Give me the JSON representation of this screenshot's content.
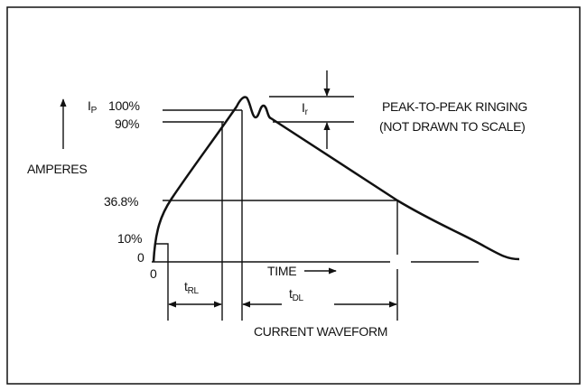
{
  "labels": {
    "peak": {
      "main": "I",
      "sub": "P"
    },
    "pct_100": "100%",
    "pct_90": "90%",
    "axis": "AMPERES",
    "pct_36_8": "36.8%",
    "pct_10": "10%",
    "zero_y": "0",
    "zero_x": "0",
    "rise": {
      "main": "t",
      "sub": "RL"
    },
    "time": "TIME",
    "decay": {
      "main": "t",
      "sub": "DL"
    },
    "caption": "CURRENT WAVEFORM",
    "ringing": {
      "main": "I",
      "sub": "r"
    },
    "note": [
      "PEAK-TO-PEAK RINGING",
      "(NOT DRAWN TO SCALE)"
    ]
  }
}
